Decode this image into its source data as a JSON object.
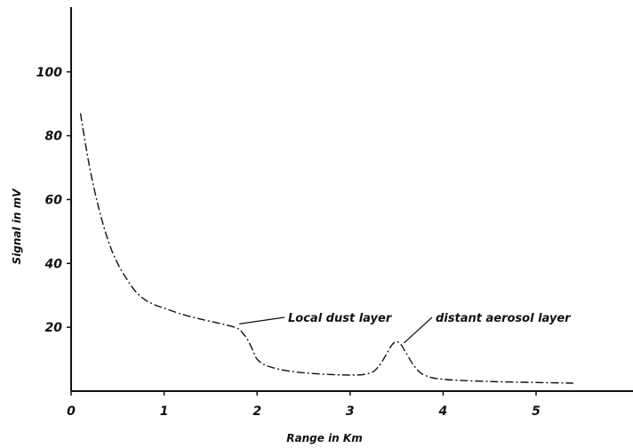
{
  "chart_data": {
    "type": "line",
    "title": "",
    "xlabel": "Range in Km",
    "ylabel": "Signal in mV",
    "xlim": [
      0,
      5.5
    ],
    "ylim": [
      0,
      120
    ],
    "xticks": [
      0,
      1,
      2,
      3,
      4,
      5
    ],
    "xtick_labels": [
      "0",
      "1",
      "2",
      "3",
      "4",
      "5"
    ],
    "yticks": [
      20,
      40,
      60,
      80,
      100
    ],
    "ytick_labels": [
      "20",
      "40",
      "60",
      "80",
      "100"
    ],
    "grid": false,
    "line_style": "dash-dot",
    "series": [
      {
        "x": [
          0.1,
          0.2,
          0.3,
          0.4,
          0.5,
          0.6,
          0.7,
          0.8,
          0.9,
          1.0,
          1.2,
          1.4,
          1.6,
          1.7,
          1.8,
          1.85,
          1.9,
          1.95,
          2.0,
          2.1,
          2.3,
          2.6,
          3.0,
          3.2,
          3.3,
          3.4,
          3.45,
          3.5,
          3.55,
          3.6,
          3.7,
          3.8,
          4.0,
          4.5,
          5.0,
          5.4
        ],
        "y": [
          87,
          70,
          57,
          47,
          40,
          35,
          31,
          28.5,
          27,
          26,
          24,
          22.5,
          21.2,
          20.5,
          19.5,
          18,
          16,
          13,
          10,
          8,
          6.5,
          5.5,
          5,
          5.5,
          7.5,
          12,
          14.5,
          15.5,
          14.5,
          12,
          7.5,
          5,
          3.7,
          3,
          2.7,
          2.5
        ]
      }
    ],
    "annotations": [
      {
        "text": "Local dust layer",
        "x": 1.78,
        "y": 20.5
      },
      {
        "text": "distant aerosol layer",
        "x": 3.55,
        "y": 14.5
      }
    ]
  }
}
